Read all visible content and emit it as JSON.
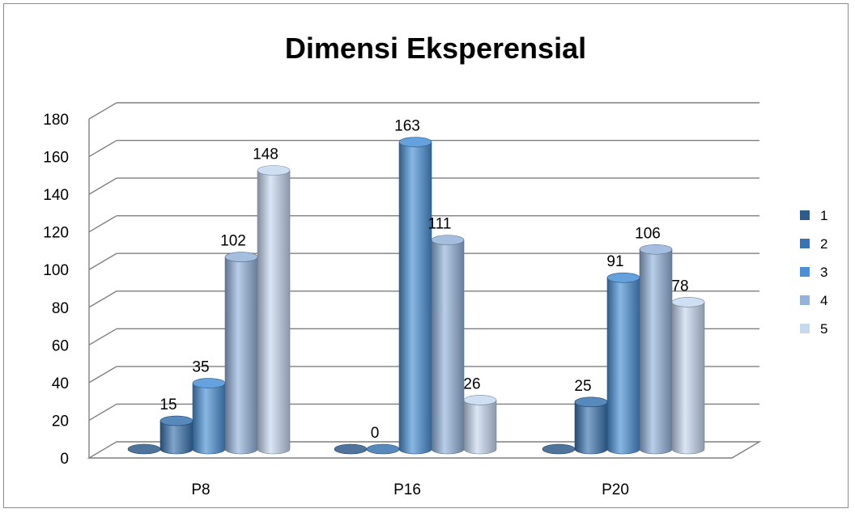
{
  "chart_data": {
    "type": "bar",
    "title": "Dimensi Eksperensial",
    "categories": [
      "P8",
      "P16",
      "P20"
    ],
    "series": [
      {
        "name": "1",
        "values": [
          null,
          null,
          null
        ],
        "labels": [
          "",
          "",
          ""
        ],
        "color": "#2f5b8a"
      },
      {
        "name": "2",
        "values": [
          15,
          0,
          25
        ],
        "labels": [
          "15",
          "0",
          "25"
        ],
        "color": "#3a74b0"
      },
      {
        "name": "3",
        "values": [
          35,
          163,
          91
        ],
        "labels": [
          "35",
          "163",
          "91"
        ],
        "color": "#4a90d6"
      },
      {
        "name": "4",
        "values": [
          102,
          111,
          106
        ],
        "labels": [
          "102",
          "111",
          "106"
        ],
        "color": "#94b3db"
      },
      {
        "name": "5",
        "values": [
          148,
          26,
          78
        ],
        "labels": [
          "148",
          "26",
          "78"
        ],
        "color": "#c6d9f1"
      }
    ],
    "yticks": [
      "0",
      "20",
      "40",
      "60",
      "80",
      "100",
      "120",
      "140",
      "160",
      "180"
    ],
    "ylim": [
      0,
      180
    ],
    "grid": true,
    "legend_position": "right"
  }
}
